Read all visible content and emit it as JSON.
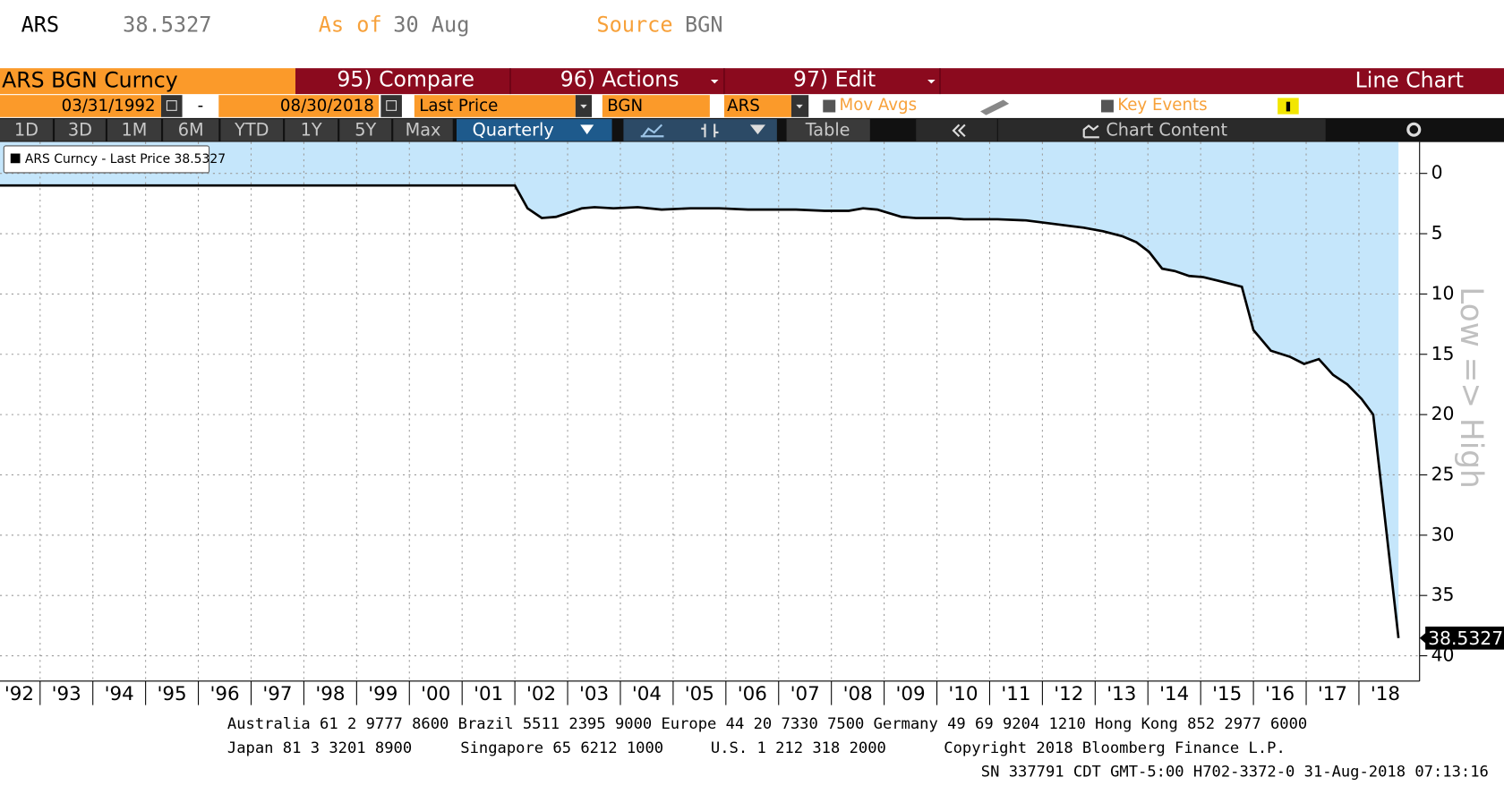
{
  "header": {
    "ticker": "ARS",
    "price": "38.5327",
    "as_of_label": "As of",
    "as_of": "30 Aug",
    "source_label": "Source",
    "source": "BGN"
  },
  "menu_bar": {
    "security": "ARS BGN Curncy",
    "compare": "95) Compare",
    "actions": "96) Actions",
    "edit": "97) Edit",
    "chart_type": "Line Chart"
  },
  "settings_bar": {
    "start_date": "03/31/1992",
    "separator": "-",
    "end_date": "08/30/2018",
    "field": "Last Price",
    "source": "BGN",
    "currency": "ARS",
    "mov_avgs": "Mov Avgs",
    "key_events": "Key Events"
  },
  "toolbar": {
    "ranges": [
      "1D",
      "3D",
      "1M",
      "6M",
      "YTD",
      "1Y",
      "5Y",
      "Max"
    ],
    "period": "Quarterly",
    "table": "Table",
    "chart_content": "Chart Content"
  },
  "chart_data": {
    "type": "line",
    "y_label": "Low => High",
    "y_inverted": true,
    "grid": true,
    "fill_color": "#c5e6fb",
    "x": [
      1992.24,
      1995,
      2000,
      2002.0,
      2002.24,
      2002.51,
      2002.78,
      2003.27,
      2003.51,
      2003.87,
      2004.33,
      2004.78,
      2005.33,
      2005.87,
      2006.42,
      2007.33,
      2007.87,
      2008.33,
      2008.6,
      2008.87,
      2009.33,
      2009.6,
      2010.24,
      2010.51,
      2011.15,
      2011.69,
      2012.24,
      2012.78,
      2013.15,
      2013.51,
      2013.78,
      2014.02,
      2014.27,
      2014.51,
      2014.78,
      2015.05,
      2015.33,
      2015.78,
      2016.0,
      2016.33,
      2016.69,
      2016.96,
      2017.24,
      2017.51,
      2017.78,
      2018.05,
      2018.27,
      2018.75
    ],
    "series": [
      {
        "name": "ARS Curncy - Last Price 38.5327",
        "color": "#000000",
        "values": [
          1,
          1,
          1,
          1,
          2.9,
          3.7,
          3.6,
          2.9,
          2.8,
          2.9,
          2.8,
          3.0,
          2.9,
          2.9,
          3.0,
          3.0,
          3.1,
          3.1,
          2.9,
          3.0,
          3.6,
          3.7,
          3.7,
          3.8,
          3.8,
          3.9,
          4.2,
          4.5,
          4.8,
          5.2,
          5.7,
          6.5,
          7.9,
          8.1,
          8.5,
          8.6,
          8.9,
          9.4,
          13.0,
          14.7,
          15.2,
          15.8,
          15.4,
          16.7,
          17.5,
          18.7,
          20.0,
          38.5327
        ]
      }
    ],
    "last_label": "38.5327",
    "xlim": [
      1992.24,
      2019.15
    ],
    "ylim": [
      -2.6,
      42.1
    ],
    "yticks": [
      0,
      5,
      10,
      15,
      20,
      25,
      30,
      35,
      40
    ],
    "xticks": [
      {
        "value": 1992,
        "label": "'92"
      },
      {
        "value": 1993,
        "label": "'93"
      },
      {
        "value": 1994,
        "label": "'94"
      },
      {
        "value": 1995,
        "label": "'95"
      },
      {
        "value": 1996,
        "label": "'96"
      },
      {
        "value": 1997,
        "label": "'97"
      },
      {
        "value": 1998,
        "label": "'98"
      },
      {
        "value": 1999,
        "label": "'99"
      },
      {
        "value": 2000,
        "label": "'00"
      },
      {
        "value": 2001,
        "label": "'01"
      },
      {
        "value": 2002,
        "label": "'02"
      },
      {
        "value": 2003,
        "label": "'03"
      },
      {
        "value": 2004,
        "label": "'04"
      },
      {
        "value": 2005,
        "label": "'05"
      },
      {
        "value": 2006,
        "label": "'06"
      },
      {
        "value": 2007,
        "label": "'07"
      },
      {
        "value": 2008,
        "label": "'08"
      },
      {
        "value": 2009,
        "label": "'09"
      },
      {
        "value": 2010,
        "label": "'10"
      },
      {
        "value": 2011,
        "label": "'11"
      },
      {
        "value": 2012,
        "label": "'12"
      },
      {
        "value": 2013,
        "label": "'13"
      },
      {
        "value": 2014,
        "label": "'14"
      },
      {
        "value": 2015,
        "label": "'15"
      },
      {
        "value": 2016,
        "label": "'16"
      },
      {
        "value": 2017,
        "label": "'17"
      },
      {
        "value": 2018,
        "label": "'18"
      }
    ]
  },
  "footer": {
    "line1": "Australia 61 2 9777 8600 Brazil 5511 2395 9000 Europe 44 20 7330 7500 Germany 49 69 9204 1210 Hong Kong 852 2977 6000",
    "line2": [
      "Japan 81 3 3201 8900",
      "Singapore 65 6212 1000",
      "U.S. 1 212 318 2000",
      "Copyright 2018 Bloomberg Finance L.P."
    ],
    "line3": "SN 337791 CDT  GMT-5:00 H702-3372-0 31-Aug-2018 07:13:16"
  }
}
